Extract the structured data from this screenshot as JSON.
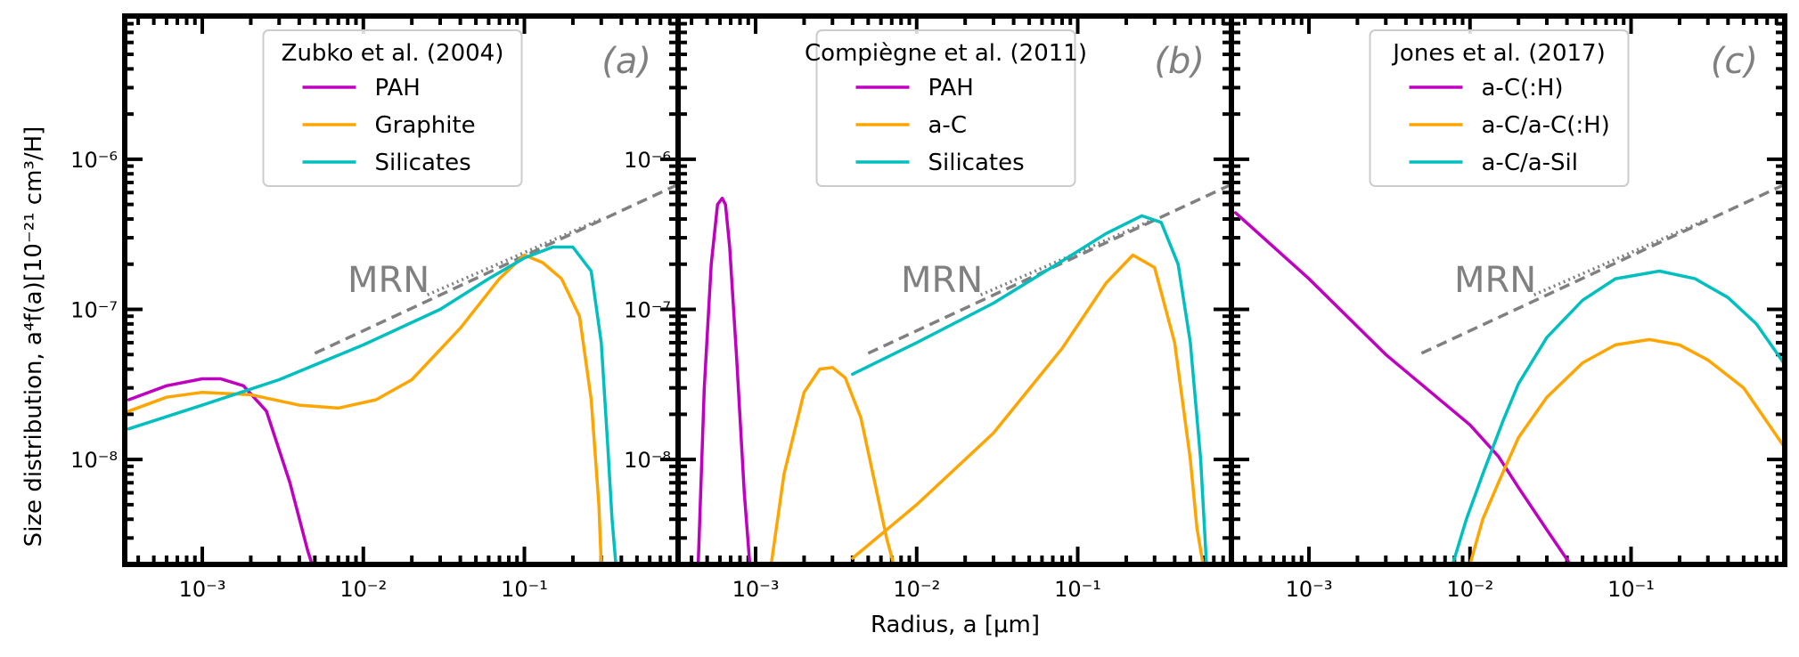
{
  "figure": {
    "ylabel": "Size distribution, a⁴f(a)[10⁻²¹ cm³/H]",
    "xlabel": "Radius, a [μm]",
    "mrn_label": "MRN"
  },
  "colors": {
    "magenta": "#c000c0",
    "orange": "#ffa500",
    "cyan": "#00bfbf",
    "mrn": "#808080",
    "axes": "#000000",
    "legend_border": "#cccccc"
  },
  "chart_data": [
    {
      "type": "line",
      "panel": "(a)",
      "legend_title": "Zubko et al. (2004)",
      "xscale": "log",
      "yscale": "log",
      "xlim": [
        0.00033,
        0.9
      ],
      "ylim": [
        2e-09,
        9e-06
      ],
      "xticks": [
        "10⁻³",
        "10⁻²",
        "10⁻¹"
      ],
      "yticks": [
        "10⁻⁶",
        "10⁻⁷",
        "10⁻⁸"
      ],
      "series": [
        {
          "name": "PAH",
          "color": "magenta",
          "x": [
            0.00035,
            0.0006,
            0.001,
            0.0013,
            0.0018,
            0.0025,
            0.0035,
            0.0045,
            0.0048
          ],
          "y": [
            2.5e-08,
            3.1e-08,
            3.45e-08,
            3.45e-08,
            3.1e-08,
            2.1e-08,
            7e-09,
            2.5e-09,
            2e-09
          ]
        },
        {
          "name": "Graphite",
          "color": "orange",
          "x": [
            0.00035,
            0.0006,
            0.001,
            0.002,
            0.004,
            0.007,
            0.012,
            0.02,
            0.04,
            0.07,
            0.1,
            0.13,
            0.17,
            0.22,
            0.26,
            0.29,
            0.3
          ],
          "y": [
            2.1e-08,
            2.6e-08,
            2.8e-08,
            2.7e-08,
            2.3e-08,
            2.2e-08,
            2.5e-08,
            3.4e-08,
            7.5e-08,
            1.6e-07,
            2.3e-07,
            2.05e-07,
            1.6e-07,
            9e-08,
            2.5e-08,
            5e-09,
            2e-09
          ]
        },
        {
          "name": "Silicates",
          "color": "cyan",
          "x": [
            0.00035,
            0.001,
            0.003,
            0.01,
            0.03,
            0.06,
            0.1,
            0.15,
            0.2,
            0.26,
            0.3,
            0.33,
            0.35,
            0.37
          ],
          "y": [
            1.6e-08,
            2.3e-08,
            3.4e-08,
            5.8e-08,
            1e-07,
            1.6e-07,
            2.2e-07,
            2.6e-07,
            2.6e-07,
            1.8e-07,
            6e-08,
            1.2e-08,
            4e-09,
            2e-09
          ]
        }
      ],
      "mrn": {
        "x": [
          0.005,
          0.9
        ],
        "y": [
          5.1e-08,
          6.8e-07
        ]
      },
      "mrn_dotted": {
        "x": [
          0.025,
          0.3
        ],
        "y": [
          1.25e-07,
          4e-07
        ]
      }
    },
    {
      "type": "line",
      "panel": "(b)",
      "legend_title": "Compiègne et al. (2011)",
      "xscale": "log",
      "yscale": "log",
      "xlim": [
        0.00033,
        0.9
      ],
      "ylim": [
        2e-09,
        9e-06
      ],
      "xticks": [
        "10⁻³",
        "10⁻²",
        "10⁻¹"
      ],
      "yticks": [
        "10⁻⁶",
        "10⁻⁷",
        "10⁻⁸"
      ],
      "series": [
        {
          "name": "PAH",
          "color": "magenta",
          "x": [
            0.00044,
            0.00048,
            0.00053,
            0.00058,
            0.00062,
            0.00065,
            0.00069,
            0.00076,
            0.00085,
            0.00092
          ],
          "y": [
            2e-09,
            3e-08,
            2e-07,
            5e-07,
            5.5e-07,
            5e-07,
            2.6e-07,
            5e-08,
            6e-09,
            2e-09
          ]
        },
        {
          "name": "a-C",
          "color": "orange",
          "x": [
            0.00125,
            0.0015,
            0.002,
            0.0025,
            0.003,
            0.0036,
            0.0045,
            0.0055,
            0.0065,
            0.0072
          ],
          "y": [
            2e-09,
            8e-09,
            2.8e-08,
            4e-08,
            4.1e-08,
            3.5e-08,
            1.9e-08,
            7e-09,
            3e-09,
            2e-09
          ],
          "extra_segment": {
            "x": [
              0.004,
              0.01,
              0.03,
              0.08,
              0.15,
              0.22,
              0.3,
              0.4,
              0.5,
              0.55,
              0.6
            ],
            "y": [
              2.2e-09,
              5e-09,
              1.5e-08,
              5.5e-08,
              1.5e-07,
              2.3e-07,
              1.9e-07,
              6e-08,
              1e-08,
              3.5e-09,
              2e-09
            ]
          }
        },
        {
          "name": "Silicates",
          "color": "cyan",
          "x": [
            0.004,
            0.01,
            0.03,
            0.08,
            0.15,
            0.25,
            0.33,
            0.42,
            0.5,
            0.58,
            0.63
          ],
          "y": [
            3.7e-08,
            6e-08,
            1.1e-07,
            2.1e-07,
            3.2e-07,
            4.2e-07,
            3.8e-07,
            2e-07,
            6e-08,
            1e-08,
            2e-09
          ]
        }
      ],
      "mrn": {
        "x": [
          0.005,
          0.9
        ],
        "y": [
          5.1e-08,
          6.8e-07
        ]
      },
      "mrn_dotted": {
        "x": [
          0.025,
          0.3
        ],
        "y": [
          1.25e-07,
          4e-07
        ]
      }
    },
    {
      "type": "line",
      "panel": "(c)",
      "legend_title": "Jones et al. (2017)",
      "xscale": "log",
      "yscale": "log",
      "xlim": [
        0.00033,
        0.9
      ],
      "ylim": [
        2e-09,
        9e-06
      ],
      "xticks": [
        "10⁻³",
        "10⁻²",
        "10⁻¹"
      ],
      "yticks": [],
      "series": [
        {
          "name": "a-C(:H)",
          "color": "magenta",
          "x": [
            0.00035,
            0.001,
            0.003,
            0.01,
            0.015,
            0.02,
            0.03,
            0.042
          ],
          "y": [
            4.4e-07,
            1.6e-07,
            5e-08,
            1.7e-08,
            1.05e-08,
            6.5e-09,
            3.4e-09,
            2e-09
          ]
        },
        {
          "name": "a-C/a-C(:H)",
          "color": "orange",
          "x": [
            0.01,
            0.012,
            0.015,
            0.02,
            0.03,
            0.05,
            0.08,
            0.13,
            0.2,
            0.3,
            0.5,
            0.9
          ],
          "y": [
            2e-09,
            4e-09,
            7e-09,
            1.4e-08,
            2.6e-08,
            4.4e-08,
            5.8e-08,
            6.3e-08,
            5.8e-08,
            4.6e-08,
            3e-08,
            1.2e-08
          ]
        },
        {
          "name": "a-C/a-Sil",
          "color": "cyan",
          "x": [
            0.0078,
            0.0095,
            0.012,
            0.016,
            0.02,
            0.03,
            0.05,
            0.08,
            0.15,
            0.25,
            0.4,
            0.6,
            0.9
          ],
          "y": [
            2e-09,
            4e-09,
            8e-09,
            1.8e-08,
            3.2e-08,
            6.5e-08,
            1.15e-07,
            1.6e-07,
            1.8e-07,
            1.6e-07,
            1.2e-07,
            8e-08,
            4.3e-08
          ]
        }
      ],
      "mrn": {
        "x": [
          0.005,
          0.9
        ],
        "y": [
          5.1e-08,
          6.8e-07
        ]
      },
      "mrn_dotted": {
        "x": [
          0.025,
          0.3
        ],
        "y": [
          1.25e-07,
          4e-07
        ]
      }
    }
  ]
}
